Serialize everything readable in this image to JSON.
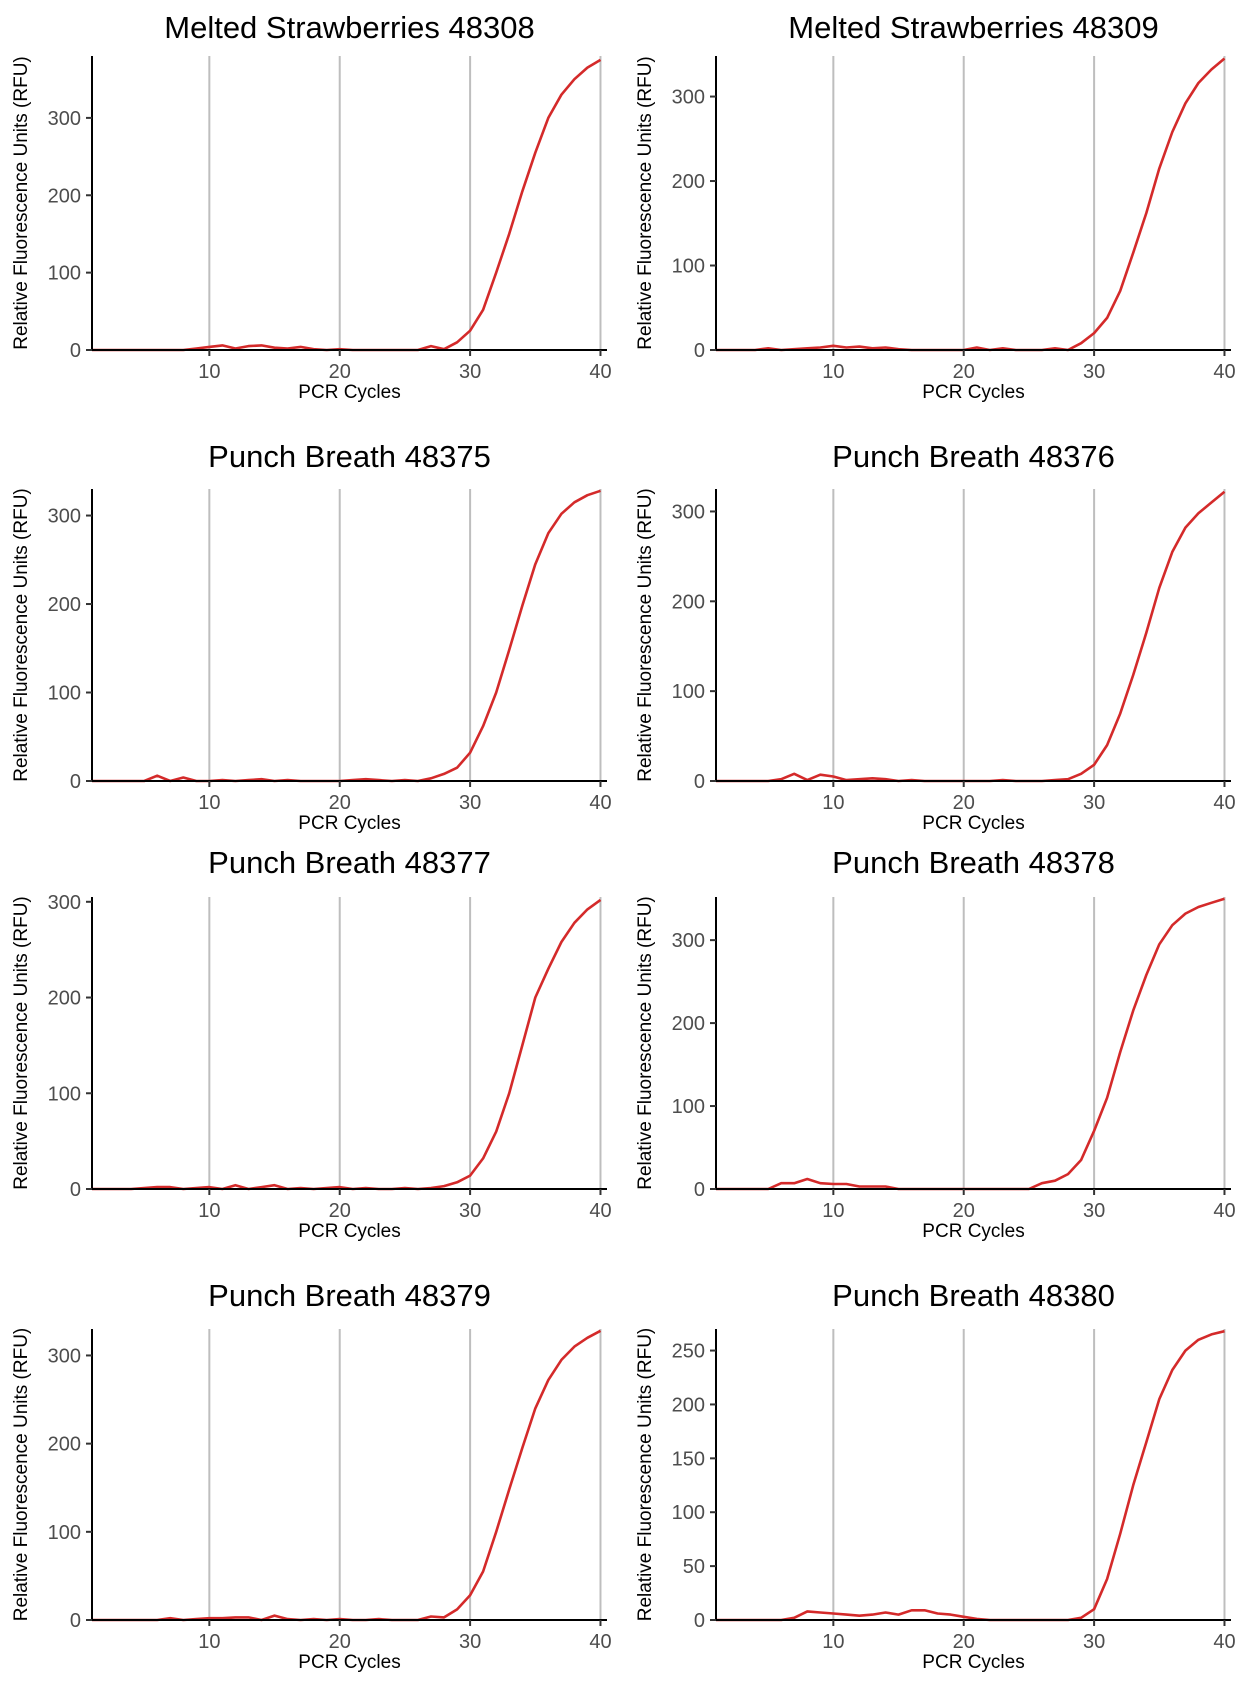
{
  "colors": {
    "curve": "#d42a2a",
    "grid": "#bebebe",
    "axis": "#000000",
    "tick_text": "#4d4d4d"
  },
  "chart_data": [
    {
      "type": "line",
      "title": "Melted Strawberries 48308",
      "xlabel": "PCR Cycles",
      "ylabel": "Relative Fluorescence Units (RFU)",
      "xlim": [
        1,
        40.5
      ],
      "ylim": [
        0,
        380
      ],
      "xticks": [
        10,
        20,
        30,
        40
      ],
      "yticks": [
        0,
        100,
        200,
        300
      ],
      "grid": "vertical",
      "series": [
        {
          "x": [
            1,
            2,
            3,
            4,
            5,
            6,
            7,
            8,
            9,
            10,
            11,
            12,
            13,
            14,
            15,
            16,
            17,
            18,
            19,
            20,
            21,
            22,
            23,
            24,
            25,
            26,
            27,
            28,
            29,
            30,
            31,
            32,
            33,
            34,
            35,
            36,
            37,
            38,
            39,
            40
          ],
          "y": [
            0,
            0,
            0,
            0,
            0,
            0,
            0,
            0,
            2,
            4,
            6,
            2,
            5,
            6,
            3,
            2,
            4,
            1,
            0,
            1,
            0,
            0,
            0,
            0,
            0,
            0,
            5,
            1,
            10,
            25,
            52,
            100,
            150,
            205,
            255,
            300,
            330,
            350,
            365,
            375
          ]
        }
      ]
    },
    {
      "type": "line",
      "title": "Melted Strawberries 48309",
      "xlabel": "PCR Cycles",
      "ylabel": "Relative Fluorescence Units (RFU)",
      "xlim": [
        1,
        40.5
      ],
      "ylim": [
        0,
        348
      ],
      "xticks": [
        10,
        20,
        30,
        40
      ],
      "yticks": [
        0,
        100,
        200,
        300
      ],
      "grid": "vertical",
      "series": [
        {
          "x": [
            1,
            2,
            3,
            4,
            5,
            6,
            7,
            8,
            9,
            10,
            11,
            12,
            13,
            14,
            15,
            16,
            17,
            18,
            19,
            20,
            21,
            22,
            23,
            24,
            25,
            26,
            27,
            28,
            29,
            30,
            31,
            32,
            33,
            34,
            35,
            36,
            37,
            38,
            39,
            40
          ],
          "y": [
            0,
            0,
            0,
            0,
            2,
            0,
            1,
            2,
            3,
            5,
            3,
            4,
            2,
            3,
            1,
            0,
            0,
            0,
            0,
            0,
            3,
            0,
            2,
            0,
            0,
            0,
            2,
            0,
            8,
            20,
            38,
            70,
            115,
            162,
            215,
            258,
            292,
            316,
            332,
            345
          ]
        }
      ]
    },
    {
      "type": "line",
      "title": "Punch Breath 48375",
      "xlabel": "PCR Cycles",
      "ylabel": "Relative Fluorescence Units (RFU)",
      "xlim": [
        1,
        40.5
      ],
      "ylim": [
        0,
        330
      ],
      "xticks": [
        10,
        20,
        30,
        40
      ],
      "yticks": [
        0,
        100,
        200,
        300
      ],
      "grid": "vertical",
      "series": [
        {
          "x": [
            1,
            2,
            3,
            4,
            5,
            6,
            7,
            8,
            9,
            10,
            11,
            12,
            13,
            14,
            15,
            16,
            17,
            18,
            19,
            20,
            21,
            22,
            23,
            24,
            25,
            26,
            27,
            28,
            29,
            30,
            31,
            32,
            33,
            34,
            35,
            36,
            37,
            38,
            39,
            40
          ],
          "y": [
            0,
            0,
            0,
            0,
            0,
            6,
            0,
            4,
            0,
            0,
            1,
            0,
            1,
            2,
            0,
            1,
            0,
            0,
            0,
            0,
            1,
            2,
            1,
            0,
            1,
            0,
            3,
            8,
            15,
            32,
            62,
            100,
            148,
            198,
            245,
            280,
            302,
            315,
            323,
            328
          ]
        }
      ]
    },
    {
      "type": "line",
      "title": "Punch Breath 48376",
      "xlabel": "PCR Cycles",
      "ylabel": "Relative Fluorescence Units (RFU)",
      "xlim": [
        1,
        40.5
      ],
      "ylim": [
        0,
        325
      ],
      "xticks": [
        10,
        20,
        30,
        40
      ],
      "yticks": [
        0,
        100,
        200,
        300
      ],
      "grid": "vertical",
      "series": [
        {
          "x": [
            1,
            2,
            3,
            4,
            5,
            6,
            7,
            8,
            9,
            10,
            11,
            12,
            13,
            14,
            15,
            16,
            17,
            18,
            19,
            20,
            21,
            22,
            23,
            24,
            25,
            26,
            27,
            28,
            29,
            30,
            31,
            32,
            33,
            34,
            35,
            36,
            37,
            38,
            39,
            40
          ],
          "y": [
            0,
            0,
            0,
            0,
            0,
            2,
            8,
            1,
            7,
            5,
            1,
            2,
            3,
            2,
            0,
            1,
            0,
            0,
            0,
            0,
            0,
            0,
            1,
            0,
            0,
            0,
            1,
            2,
            8,
            18,
            40,
            75,
            118,
            165,
            215,
            255,
            282,
            298,
            310,
            322
          ]
        }
      ]
    },
    {
      "type": "line",
      "title": "Punch Breath 48377",
      "xlabel": "PCR Cycles",
      "ylabel": "Relative Fluorescence Units (RFU)",
      "xlim": [
        1,
        40.5
      ],
      "ylim": [
        0,
        305
      ],
      "xticks": [
        10,
        20,
        30,
        40
      ],
      "yticks": [
        0,
        100,
        200,
        300
      ],
      "grid": "vertical",
      "series": [
        {
          "x": [
            1,
            2,
            3,
            4,
            5,
            6,
            7,
            8,
            9,
            10,
            11,
            12,
            13,
            14,
            15,
            16,
            17,
            18,
            19,
            20,
            21,
            22,
            23,
            24,
            25,
            26,
            27,
            28,
            29,
            30,
            31,
            32,
            33,
            34,
            35,
            36,
            37,
            38,
            39,
            40
          ],
          "y": [
            0,
            0,
            0,
            0,
            1,
            2,
            2,
            0,
            1,
            2,
            0,
            4,
            0,
            2,
            4,
            0,
            1,
            0,
            1,
            2,
            0,
            1,
            0,
            0,
            1,
            0,
            1,
            3,
            7,
            14,
            32,
            60,
            100,
            150,
            200,
            230,
            258,
            278,
            292,
            302
          ]
        }
      ]
    },
    {
      "type": "line",
      "title": "Punch Breath 48378",
      "xlabel": "PCR Cycles",
      "ylabel": "Relative Fluorescence Units (RFU)",
      "xlim": [
        1,
        40.5
      ],
      "ylim": [
        0,
        352
      ],
      "xticks": [
        10,
        20,
        30,
        40
      ],
      "yticks": [
        0,
        100,
        200,
        300
      ],
      "grid": "vertical",
      "series": [
        {
          "x": [
            1,
            2,
            3,
            4,
            5,
            6,
            7,
            8,
            9,
            10,
            11,
            12,
            13,
            14,
            15,
            16,
            17,
            18,
            19,
            20,
            21,
            22,
            23,
            24,
            25,
            26,
            27,
            28,
            29,
            30,
            31,
            32,
            33,
            34,
            35,
            36,
            37,
            38,
            39,
            40
          ],
          "y": [
            0,
            0,
            0,
            0,
            0,
            7,
            7,
            12,
            7,
            6,
            6,
            3,
            3,
            3,
            0,
            0,
            0,
            0,
            0,
            0,
            0,
            0,
            0,
            0,
            0,
            7,
            10,
            18,
            35,
            70,
            110,
            165,
            215,
            258,
            295,
            318,
            332,
            340,
            345,
            350
          ]
        }
      ]
    },
    {
      "type": "line",
      "title": "Punch Breath 48379",
      "xlabel": "PCR Cycles",
      "ylabel": "Relative Fluorescence Units (RFU)",
      "xlim": [
        1,
        40.5
      ],
      "ylim": [
        0,
        330
      ],
      "xticks": [
        10,
        20,
        30,
        40
      ],
      "yticks": [
        0,
        100,
        200,
        300
      ],
      "grid": "vertical",
      "series": [
        {
          "x": [
            1,
            2,
            3,
            4,
            5,
            6,
            7,
            8,
            9,
            10,
            11,
            12,
            13,
            14,
            15,
            16,
            17,
            18,
            19,
            20,
            21,
            22,
            23,
            24,
            25,
            26,
            27,
            28,
            29,
            30,
            31,
            32,
            33,
            34,
            35,
            36,
            37,
            38,
            39,
            40
          ],
          "y": [
            0,
            0,
            0,
            0,
            0,
            0,
            2,
            0,
            1,
            2,
            2,
            3,
            3,
            0,
            5,
            1,
            0,
            1,
            0,
            1,
            0,
            0,
            1,
            0,
            0,
            0,
            4,
            3,
            12,
            28,
            55,
            100,
            148,
            195,
            240,
            272,
            295,
            310,
            320,
            328
          ]
        }
      ]
    },
    {
      "type": "line",
      "title": "Punch Breath 48380",
      "xlabel": "PCR Cycles",
      "ylabel": "Relative Fluorescence Units (RFU)",
      "xlim": [
        1,
        40.5
      ],
      "ylim": [
        0,
        270
      ],
      "xticks": [
        10,
        20,
        30,
        40
      ],
      "yticks": [
        0,
        50,
        100,
        150,
        200,
        250
      ],
      "grid": "vertical",
      "series": [
        {
          "x": [
            1,
            2,
            3,
            4,
            5,
            6,
            7,
            8,
            9,
            10,
            11,
            12,
            13,
            14,
            15,
            16,
            17,
            18,
            19,
            20,
            21,
            22,
            23,
            24,
            25,
            26,
            27,
            28,
            29,
            30,
            31,
            32,
            33,
            34,
            35,
            36,
            37,
            38,
            39,
            40
          ],
          "y": [
            0,
            0,
            0,
            0,
            0,
            0,
            2,
            8,
            7,
            6,
            5,
            4,
            5,
            7,
            5,
            9,
            9,
            6,
            5,
            3,
            1,
            0,
            0,
            0,
            0,
            0,
            0,
            0,
            2,
            10,
            38,
            80,
            125,
            165,
            205,
            232,
            250,
            260,
            265,
            268
          ]
        }
      ]
    }
  ]
}
